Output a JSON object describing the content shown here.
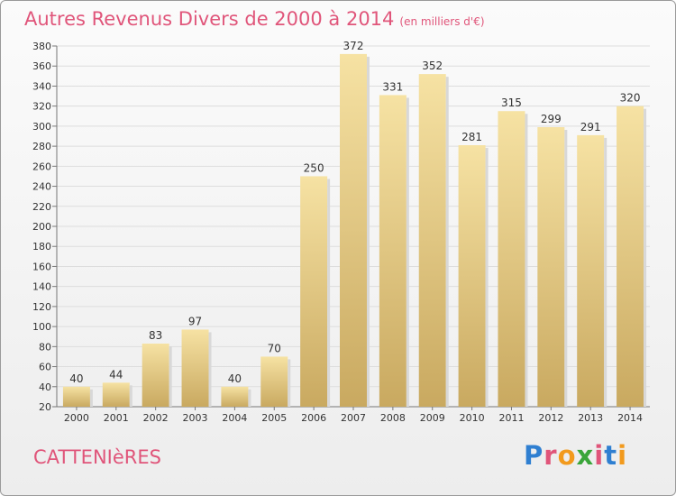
{
  "header": {
    "title": "Autres Revenus Divers de 2000 à 2014",
    "unit": "(en milliers d'€)"
  },
  "footer": {
    "city": "CATTENIèRES",
    "brand_letters": [
      "P",
      "r",
      "o",
      "x",
      "i",
      "t",
      "i"
    ],
    "brand_colors": [
      "#2f7fd1",
      "#e0557a",
      "#f29a1d",
      "#3aa53a",
      "#e0557a",
      "#2f7fd1",
      "#f29a1d"
    ]
  },
  "colors": {
    "title": "#e0557a",
    "bar_light": "#f6e2a3",
    "bar_dark": "#c9a960",
    "grid": "#dddddd"
  },
  "chart_data": {
    "type": "bar",
    "title": "Autres Revenus Divers de 2000 à 2014",
    "subtitle": "(en milliers d'€)",
    "categories": [
      "2000",
      "2001",
      "2002",
      "2003",
      "2004",
      "2005",
      "2006",
      "2007",
      "2008",
      "2009",
      "2010",
      "2011",
      "2012",
      "2013",
      "2014"
    ],
    "values": [
      40,
      44,
      83,
      97,
      40,
      70,
      250,
      372,
      331,
      352,
      281,
      315,
      299,
      291,
      320
    ],
    "ylim": [
      20,
      380
    ],
    "yticks": [
      20,
      40,
      60,
      80,
      100,
      120,
      140,
      160,
      180,
      200,
      220,
      240,
      260,
      280,
      300,
      320,
      340,
      360,
      380
    ],
    "grid": true,
    "xlabel": "",
    "ylabel": ""
  }
}
